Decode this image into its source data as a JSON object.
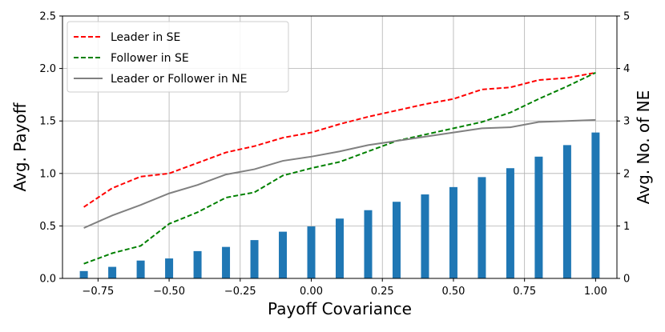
{
  "chart_data": {
    "type": "line",
    "xlabel": "Payoff Covariance",
    "ylabel": "Avg. Payoff",
    "y2label": "Avg. No. of NE",
    "xlim": [
      -0.875,
      1.075
    ],
    "ylim": [
      0,
      2.5
    ],
    "y2lim": [
      0,
      5
    ],
    "grid": true,
    "legend_position": "upper-left",
    "x_ticks": [
      "−0.75",
      "−0.50",
      "−0.25",
      "0.00",
      "0.25",
      "0.50",
      "0.75",
      "1.00"
    ],
    "x_tick_values": [
      -0.75,
      -0.5,
      -0.25,
      0,
      0.25,
      0.5,
      0.75,
      1.0
    ],
    "y_ticks": [
      "0.0",
      "0.5",
      "1.0",
      "1.5",
      "2.0",
      "2.5"
    ],
    "y_tick_values": [
      0,
      0.5,
      1.0,
      1.5,
      2.0,
      2.5
    ],
    "y2_ticks": [
      "0",
      "1",
      "2",
      "3",
      "4",
      "5"
    ],
    "y2_tick_values": [
      0,
      1,
      2,
      3,
      4,
      5
    ],
    "x": [
      -0.8,
      -0.7,
      -0.6,
      -0.5,
      -0.4,
      -0.3,
      -0.2,
      -0.1,
      0.0,
      0.1,
      0.2,
      0.3,
      0.4,
      0.5,
      0.6,
      0.7,
      0.8,
      0.9,
      1.0
    ],
    "series": [
      {
        "name": "Leader in SE",
        "color": "#ff0000",
        "style": "dashed",
        "values": [
          0.68,
          0.86,
          0.97,
          1.0,
          1.1,
          1.2,
          1.26,
          1.34,
          1.39,
          1.47,
          1.54,
          1.6,
          1.66,
          1.71,
          1.8,
          1.82,
          1.89,
          1.91,
          1.96
        ]
      },
      {
        "name": "Follower in SE",
        "color": "#008000",
        "style": "dashed",
        "values": [
          0.14,
          0.24,
          0.31,
          0.52,
          0.63,
          0.77,
          0.82,
          0.98,
          1.05,
          1.11,
          1.21,
          1.31,
          1.37,
          1.43,
          1.49,
          1.58,
          1.71,
          1.83,
          1.96
        ]
      },
      {
        "name": "Leader or Follower in NE",
        "color": "#808080",
        "style": "solid",
        "values": [
          0.48,
          0.6,
          0.7,
          0.81,
          0.89,
          0.99,
          1.04,
          1.12,
          1.16,
          1.21,
          1.27,
          1.31,
          1.35,
          1.39,
          1.43,
          1.44,
          1.49,
          1.5,
          1.51
        ]
      }
    ],
    "bars": {
      "axis": "right",
      "color": "#1f77b4",
      "values": [
        0.14,
        0.22,
        0.34,
        0.38,
        0.52,
        0.6,
        0.73,
        0.89,
        0.99,
        1.14,
        1.3,
        1.46,
        1.6,
        1.74,
        1.93,
        2.1,
        2.32,
        2.54,
        2.78
      ]
    }
  }
}
